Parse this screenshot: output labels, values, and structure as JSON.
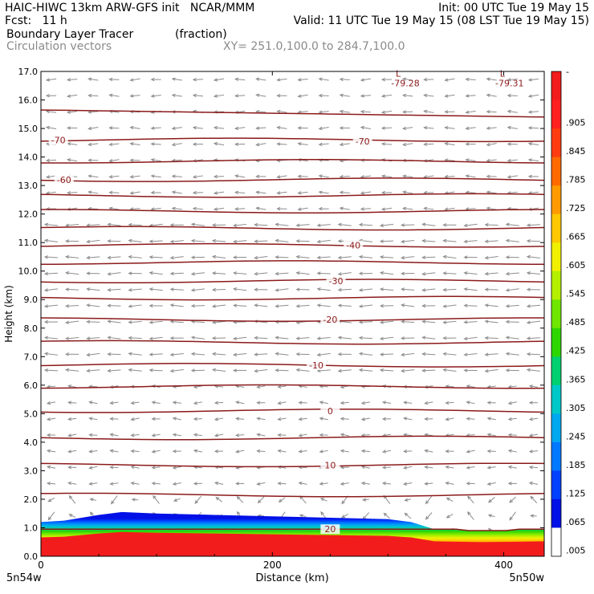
{
  "header": {
    "line1_left": "HAIC-HIWC 13km ARW-GFS init   NCAR/MMM",
    "line1_right": "Init: 00 UTC Tue 19 May 15",
    "line2_left": "Fcst:   11 h",
    "line2_right": "Valid: 11 UTC Tue 19 May 15 (08 LST Tue 19 May 15)",
    "field_name": "Boundary Layer Tracer",
    "field_units": "(fraction)",
    "vector_label": "Circulation vectors",
    "xy_label": "XY= 251.0,100.0 to 284.7,100.0"
  },
  "colors": {
    "contour": "#8b1a1a",
    "arrows": "#8c8c8c",
    "frame": "#000000"
  },
  "chart_data": {
    "type": "heatmap",
    "xlabel": "Distance (km)",
    "ylabel": "Height (km)",
    "xlim": [
      0,
      435
    ],
    "ylim": [
      0,
      17
    ],
    "x_ticks": [
      0,
      200,
      400
    ],
    "y_ticks": [
      "0.0",
      "1.0",
      "2.0",
      "3.0",
      "4.0",
      "5.0",
      "6.0",
      "7.0",
      "8.0",
      "9.0",
      "10.0",
      "11.0",
      "12.0",
      "13.0",
      "14.0",
      "15.0",
      "16.0",
      "17.0"
    ],
    "x_end_labels": {
      "left": "5n54w",
      "right": "5n50w"
    },
    "colorbar_levels": [
      "-",
      ".905",
      ".845",
      ".785",
      ".725",
      ".665",
      ".605",
      ".545",
      ".485",
      ".425",
      ".365",
      ".305",
      ".245",
      ".185",
      ".125",
      ".065",
      ".005"
    ],
    "colorbar_colors": [
      "#f21c1c",
      "#ff2020",
      "#ff3c10",
      "#ff6a00",
      "#ff9a00",
      "#ffc800",
      "#f0f000",
      "#b4ef00",
      "#6ee600",
      "#2ed600",
      "#00d070",
      "#00c8c8",
      "#00a8f0",
      "#0078ff",
      "#0040ff",
      "#0010e6",
      "#ffffff"
    ],
    "boundary_layer_top": [
      {
        "x": 0,
        "z": 1.2
      },
      {
        "x": 20,
        "z": 1.25
      },
      {
        "x": 50,
        "z": 1.45
      },
      {
        "x": 70,
        "z": 1.55
      },
      {
        "x": 100,
        "z": 1.5
      },
      {
        "x": 150,
        "z": 1.45
      },
      {
        "x": 200,
        "z": 1.4
      },
      {
        "x": 250,
        "z": 1.35
      },
      {
        "x": 300,
        "z": 1.3
      },
      {
        "x": 320,
        "z": 1.2
      },
      {
        "x": 340,
        "z": 0.95
      },
      {
        "x": 380,
        "z": 0.9
      },
      {
        "x": 435,
        "z": 0.95
      }
    ],
    "contour_lines": [
      {
        "z": 0.95,
        "label": "20",
        "label_x": 250
      },
      {
        "z": 2.15,
        "label": "",
        "label_x": 0
      },
      {
        "z": 3.2,
        "label": "10",
        "label_x": 250
      },
      {
        "z": 4.15,
        "label": "",
        "label_x": 0
      },
      {
        "z": 5.1,
        "label": "0",
        "label_x": 250
      },
      {
        "z": 5.95,
        "label": "",
        "label_x": 0
      },
      {
        "z": 6.7,
        "label": "-10",
        "label_x": 238
      },
      {
        "z": 7.5,
        "label": "",
        "label_x": 0
      },
      {
        "z": 8.3,
        "label": "-20",
        "label_x": 250
      },
      {
        "z": 9.05,
        "label": "",
        "label_x": 0
      },
      {
        "z": 9.65,
        "label": "-30",
        "label_x": 255
      },
      {
        "z": 10.3,
        "label": "",
        "label_x": 0
      },
      {
        "z": 10.9,
        "label": "-40",
        "label_x": 270
      },
      {
        "z": 11.5,
        "label": "",
        "label_x": 0
      },
      {
        "z": 12.1,
        "label": "",
        "label_x": 0
      },
      {
        "z": 12.65,
        "label": "",
        "label_x": 0
      },
      {
        "z": 13.2,
        "label": "-60",
        "label_x": 20
      },
      {
        "z": 13.85,
        "label": "",
        "label_x": 0
      },
      {
        "z": 14.6,
        "label": "-70",
        "label_x": 15
      },
      {
        "z": 15.65,
        "label": "",
        "label_x": 0
      }
    ],
    "extra_contour_labels": [
      {
        "x": 278,
        "z": 14.55,
        "label": "-70"
      }
    ],
    "lows": [
      {
        "x": 315,
        "z": 16.7,
        "label": "-79.28"
      },
      {
        "x": 405,
        "z": 16.7,
        "label": "-79.31"
      }
    ],
    "low_marker": "L",
    "vectors_grid": {
      "nx": 24,
      "nz": 30,
      "description": "westward circulation vectors aloft, weak near surface"
    }
  }
}
